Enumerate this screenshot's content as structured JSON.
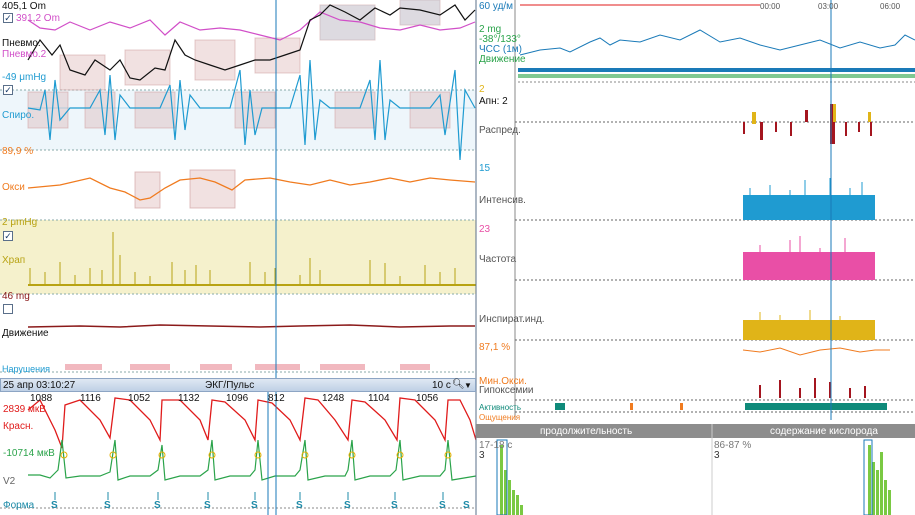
{
  "left": {
    "pneumo": {
      "top_value": "405,1 Om",
      "pneumo2_value": "391,2 Om",
      "label1": "Пневмо.",
      "label2": "Пневмо.2",
      "checked": "✓"
    },
    "spiro": {
      "value": "-49 μmHg",
      "label": "Спиро.",
      "checked": "✓"
    },
    "oxy": {
      "value": "89,9 %",
      "label": "Окси"
    },
    "snore": {
      "value": "2 μmHg",
      "label": "Храп",
      "checked": "✓"
    },
    "motion": {
      "value": "46 mg",
      "label": "Движение"
    },
    "violations": {
      "label": "Нарушения"
    },
    "ecg_header": {
      "datetime": "25 апр 03:10:27",
      "title": "ЭКГ/Пульс",
      "scale": "10 с",
      "search_icon": "magnifier-icon",
      "dropdown_icon": "chevron-down-icon"
    },
    "ecg": {
      "red_value": "2839 мкВ",
      "red_label": "Красн.",
      "green_value": "-10714 мкВ",
      "green_label": "V2",
      "form_label": "Форма",
      "rr_intervals": [
        "1088",
        "1116",
        "1052",
        "1132",
        "1096",
        "812",
        "1248",
        "1104",
        "1056"
      ],
      "beat_marks": [
        "S",
        "S",
        "S",
        "S",
        "S",
        "S",
        "S",
        "S",
        "S",
        "S"
      ]
    }
  },
  "right": {
    "hr": {
      "value": "60 уд/м",
      "label": "ЧСС (1м)"
    },
    "position": {
      "value": "2 mg",
      "angle": "-38°/133°"
    },
    "motion_label": "Движение",
    "apnea": {
      "value": "2",
      "label": "Апн: 2"
    },
    "distribution": {
      "label": "Распред."
    },
    "intensity": {
      "value": "15",
      "label": "Интенсив."
    },
    "frequency": {
      "value": "23",
      "label": "Частота"
    },
    "inspiratory": {
      "label": "Инспират.инд."
    },
    "oxy": {
      "value": "87,1 %"
    },
    "hypox": {
      "label1": "Мин.Окси.",
      "label2": "Гипоксемии"
    },
    "activity_label": "Активность",
    "sensations_label": "Ощущения",
    "time_ticks": [
      "00:00",
      "03:00",
      "06:00"
    ],
    "histogram": {
      "left_title": "продолжительность",
      "right_title": "содержание кислорода",
      "left_range": "17-18 с",
      "left_count": "3",
      "right_range": "86-87 %",
      "right_count": "3"
    }
  },
  "colors": {
    "pneumo": "#d14fc8",
    "pneumo_black": "#111111",
    "spiro": "#1f9bd1",
    "oxy": "#f07b1f",
    "snore": "#b8a313",
    "snore_band": "#f5f1cc",
    "motion": "#8b1a1a",
    "ecg_red": "#e01b1b",
    "ecg_green": "#2aa34a",
    "accent_blue": "#1a7ab8",
    "hist_green": "#7ac943",
    "pink_bars": "#e94fa6",
    "yellow_bars": "#e0b418",
    "teal": "#0f8a7a"
  }
}
